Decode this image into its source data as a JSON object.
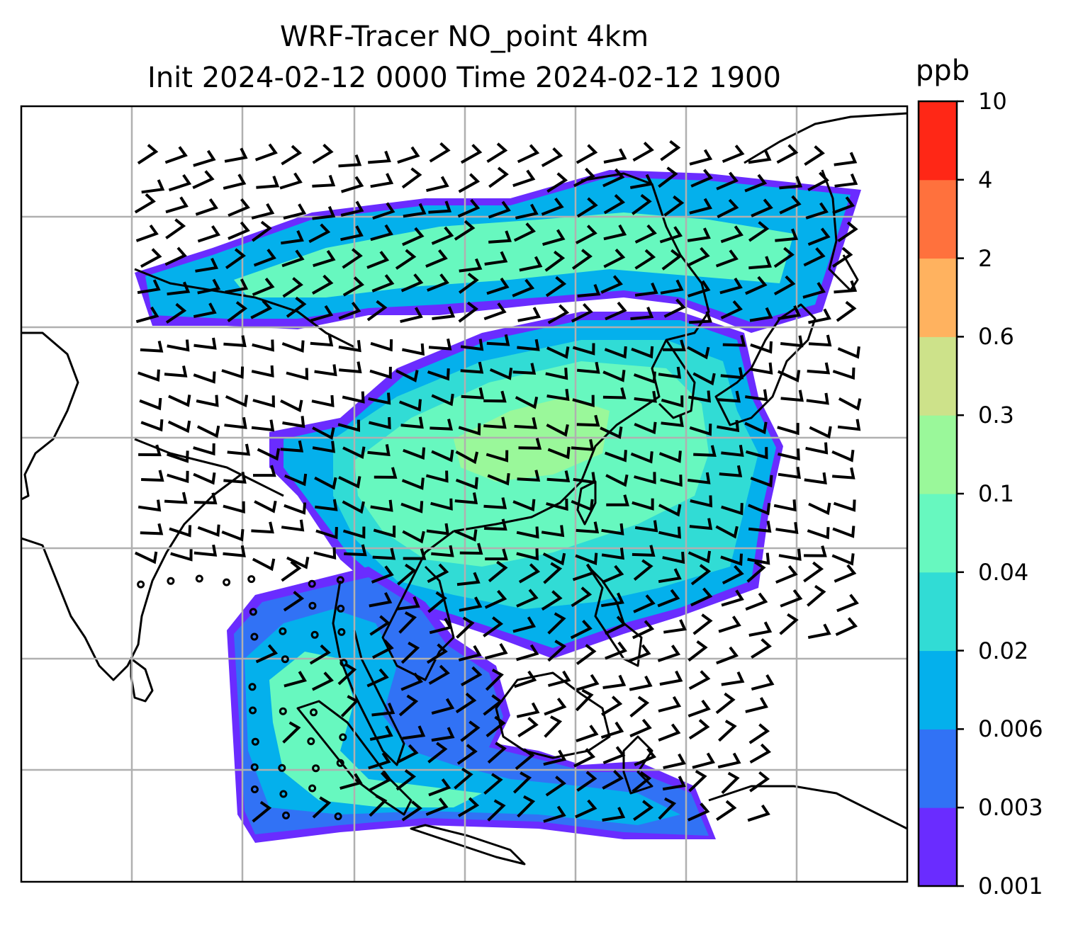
{
  "title": {
    "line1": "WRF-Tracer NO_point 4km",
    "line2": "Init 2024-02-12 0000 Time 2024-02-12 1900"
  },
  "colorbar": {
    "label": "ppb",
    "ticks": [
      "0.001",
      "0.003",
      "0.006",
      "0.02",
      "0.04",
      "0.1",
      "0.3",
      "0.6",
      "2",
      "4",
      "10"
    ],
    "colors": [
      "#6a2cff",
      "#3172f5",
      "#04b0ec",
      "#31dcd5",
      "#67f8bf",
      "#9af89a",
      "#cde28a",
      "#ffb25f",
      "#ff713d",
      "#ff2716"
    ]
  },
  "map": {
    "gridlines": true,
    "plume_color_low": "#6a2cff",
    "plume_color_mid": "#04b0ec",
    "plume_color_high": "#67f8bf"
  }
}
